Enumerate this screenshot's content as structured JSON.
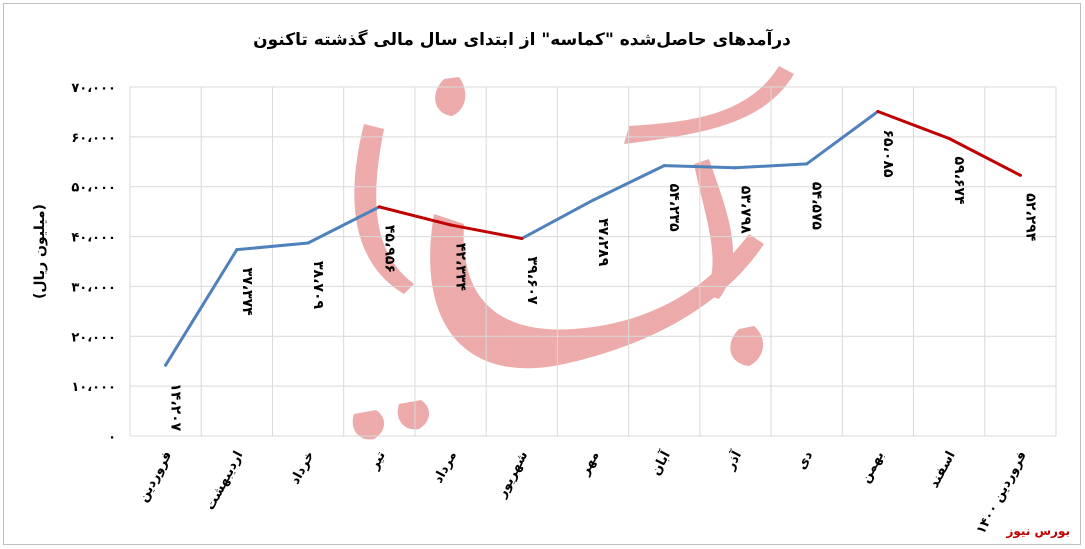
{
  "chart_data": {
    "type": "line",
    "title": "درآمدهای حاصل‌شده \"کماسه\" از ابتدای سال مالی گذشته تاکنون",
    "ylabel": "(میلیون ریال)",
    "xlabel": "",
    "ylim": [
      0,
      70000
    ],
    "y_ticks": [
      0,
      10000,
      20000,
      30000,
      40000,
      50000,
      60000,
      70000
    ],
    "y_tick_labels": [
      "۰",
      "۱۰،۰۰۰",
      "۲۰،۰۰۰",
      "۳۰،۰۰۰",
      "۴۰،۰۰۰",
      "۵۰،۰۰۰",
      "۶۰،۰۰۰",
      "۷۰،۰۰۰"
    ],
    "categories": [
      "فروردین",
      "اردیبهشت",
      "خرداد",
      "تیر",
      "مرداد",
      "شهریور",
      "مهر",
      "آبان",
      "آذر",
      "دی",
      "بهمن",
      "اسفند",
      "فروردین ۱۴۰۰"
    ],
    "values": [
      14207,
      37374,
      38709,
      45956,
      42334,
      39607,
      47289,
      54235,
      53798,
      54575,
      65085,
      59674,
      52294
    ],
    "data_labels": [
      "۱۴،۲۰۷",
      "۳۷،۳۷۴",
      "۳۸،۷۰۹",
      "۴۵،۹۵۶",
      "۴۲،۳۳۴",
      "۳۹،۶۰۷",
      "۴۷،۲۸۹",
      "۵۴،۲۳۵",
      "۵۳،۷۹۸",
      "۵۴،۵۷۵",
      "۶۵،۰۸۵",
      "۵۹،۶۷۴",
      "۵۲،۲۹۴"
    ],
    "grid": true,
    "declining_segments": [
      [
        3,
        5
      ],
      [
        10,
        12
      ]
    ],
    "colors": {
      "rising": "#4f81bd",
      "declining": "#c00000",
      "grid": "#d9d9d9"
    }
  },
  "watermark": {
    "corner_text": "بورس نیوز",
    "overlay_text": "بورس نیوز",
    "color": "#e06666"
  }
}
